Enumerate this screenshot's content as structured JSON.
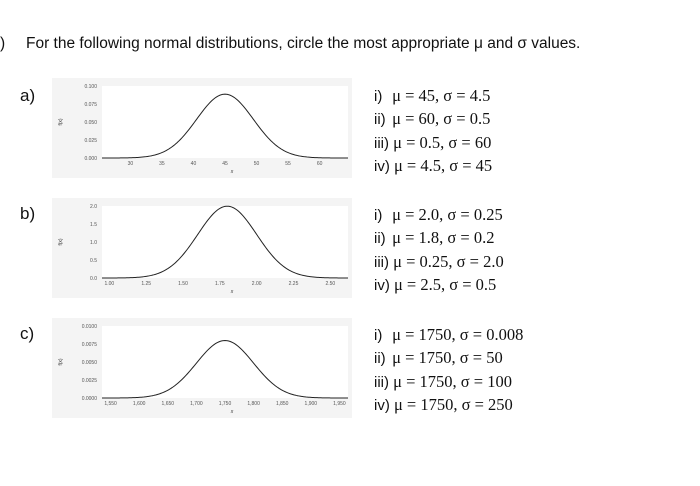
{
  "question": {
    "number": ")",
    "text": "For the following normal distributions, circle the most appropriate μ and σ values."
  },
  "parts": [
    {
      "label": "a)",
      "chart_data": {
        "type": "line",
        "mean": 45,
        "sd": 4.5,
        "xticks": [
          "30",
          "35",
          "40",
          "45",
          "50",
          "55",
          "60"
        ],
        "xtick_values": [
          30,
          35,
          40,
          45,
          50,
          55,
          60
        ],
        "xlim": [
          25.5,
          64.5
        ],
        "yticks": [
          "0.100",
          "0.075",
          "0.050",
          "0.025",
          "0.000"
        ],
        "ytick_values": [
          0.1,
          0.075,
          0.05,
          0.025,
          0
        ],
        "ylim": [
          0,
          0.1
        ],
        "xlabel": "x",
        "ylabel": "f(x)"
      },
      "options": [
        {
          "numeral": "i)",
          "text": "μ = 45, σ = 4.5"
        },
        {
          "numeral": "ii)",
          "text": "μ = 60, σ = 0.5"
        },
        {
          "numeral": "iii)",
          "text": "μ = 0.5, σ = 60"
        },
        {
          "numeral": "iv)",
          "text": "μ = 4.5, σ = 45"
        }
      ]
    },
    {
      "label": "b)",
      "chart_data": {
        "type": "line",
        "mean": 1.8,
        "sd": 0.2,
        "xticks": [
          "1.00",
          "1.25",
          "1.50",
          "1.75",
          "2.00",
          "2.25",
          "2.50"
        ],
        "xtick_values": [
          1.0,
          1.25,
          1.5,
          1.75,
          2.0,
          2.25,
          2.5
        ],
        "xlim": [
          0.95,
          2.62
        ],
        "yticks": [
          "2.0",
          "1.5",
          "1.0",
          "0.5",
          "0.0"
        ],
        "ytick_values": [
          2.0,
          1.5,
          1.0,
          0.5,
          0
        ],
        "ylim": [
          0,
          2.0
        ],
        "xlabel": "x",
        "ylabel": "f(x)"
      },
      "options": [
        {
          "numeral": "i)",
          "text": "μ = 2.0, σ = 0.25"
        },
        {
          "numeral": "ii)",
          "text": "μ = 1.8, σ = 0.2"
        },
        {
          "numeral": "iii)",
          "text": "μ = 0.25, σ = 2.0"
        },
        {
          "numeral": "iv)",
          "text": "μ = 2.5, σ = 0.5"
        }
      ]
    },
    {
      "label": "c)",
      "chart_data": {
        "type": "line",
        "mean": 1750,
        "sd": 50,
        "xticks": [
          "1,550",
          "1,600",
          "1,650",
          "1,700",
          "1,750",
          "1,800",
          "1,850",
          "1,900",
          "1,950"
        ],
        "xtick_values": [
          1550,
          1600,
          1650,
          1700,
          1750,
          1800,
          1850,
          1900,
          1950
        ],
        "xlim": [
          1535,
          1965
        ],
        "yticks": [
          "0.0100",
          "0.0075",
          "0.0050",
          "0.0025",
          "0.0000"
        ],
        "ytick_values": [
          0.01,
          0.0075,
          0.005,
          0.0025,
          0
        ],
        "ylim": [
          0,
          0.01
        ],
        "xlabel": "x",
        "ylabel": "f(x)"
      },
      "options": [
        {
          "numeral": "i)",
          "text": "μ = 1750, σ = 0.008"
        },
        {
          "numeral": "ii)",
          "text": "μ = 1750, σ = 50"
        },
        {
          "numeral": "iii)",
          "text": "μ = 1750, σ = 100"
        },
        {
          "numeral": "iv)",
          "text": "μ = 1750, σ = 250"
        }
      ]
    }
  ]
}
